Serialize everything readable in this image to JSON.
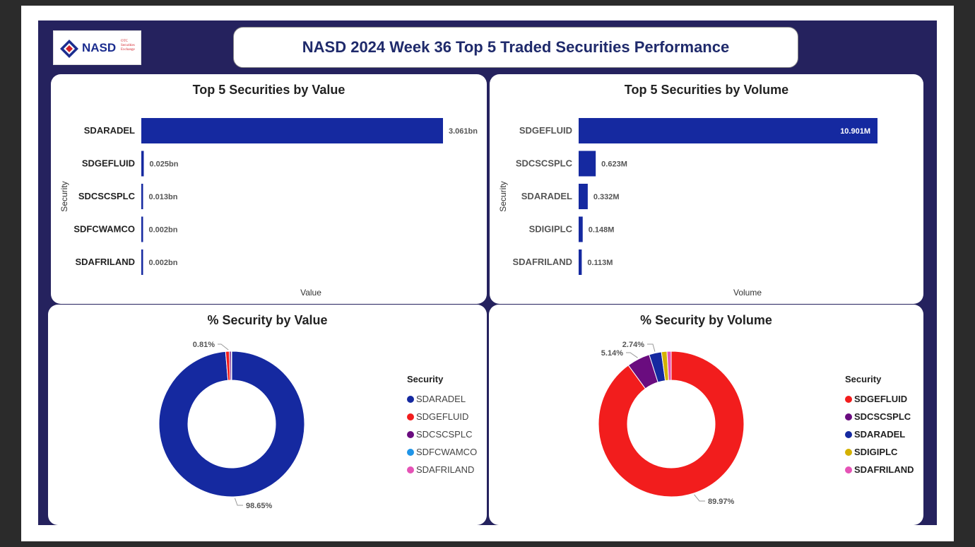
{
  "header": {
    "title": "NASD 2024 Week 36 Top 5 Traded Securities Performance",
    "logo_text": "NASD",
    "logo_tagline": "OTC Securities Exchange"
  },
  "colors": {
    "bar": "#1529a0",
    "SDARADEL": "#1529a0",
    "SDGEFLUID": "#f21d1d",
    "SDCSCSPLC": "#6a0c7f",
    "SDFCWAMCO": "#2095e8",
    "SDAFRILAND": "#e553b6",
    "SDIGIPLC": "#d4b100"
  },
  "chart_data": [
    {
      "type": "bar",
      "orientation": "horizontal",
      "title": "Top 5 Securities by Value",
      "xlabel": "Value",
      "ylabel": "Security",
      "categories": [
        "SDARADEL",
        "SDGEFLUID",
        "SDCSCSPLC",
        "SDFCWAMCO",
        "SDAFRILAND"
      ],
      "values": [
        3.061,
        0.025,
        0.013,
        0.002,
        0.002
      ],
      "value_labels": [
        "3.061bn",
        "0.025bn",
        "0.013bn",
        "0.002bn",
        "0.002bn"
      ],
      "unit": "bn",
      "xlim": [
        0,
        3.061
      ],
      "grid": false
    },
    {
      "type": "bar",
      "orientation": "horizontal",
      "title": "Top 5 Securities by Volume",
      "xlabel": "Volume",
      "ylabel": "Security",
      "categories": [
        "SDGEFLUID",
        "SDCSCSPLC",
        "SDARADEL",
        "SDIGIPLC",
        "SDAFRILAND"
      ],
      "values": [
        10.901,
        0.623,
        0.332,
        0.148,
        0.113
      ],
      "value_labels": [
        "10.901M",
        "0.623M",
        "0.332M",
        "0.148M",
        "0.113M"
      ],
      "unit": "M",
      "xlim": [
        0,
        10.901
      ],
      "grid": false
    },
    {
      "type": "pie",
      "donut": true,
      "title": "% Security by Value",
      "legend_title": "Security",
      "legend_position": "right",
      "categories": [
        "SDARADEL",
        "SDGEFLUID",
        "SDCSCSPLC",
        "SDFCWAMCO",
        "SDAFRILAND"
      ],
      "values": [
        98.65,
        0.81,
        0.42,
        0.06,
        0.06
      ],
      "labels": [
        {
          "category": "SDGEFLUID",
          "text": "0.81%"
        },
        {
          "category": "SDARADEL",
          "text": "98.65%"
        }
      ]
    },
    {
      "type": "pie",
      "donut": true,
      "title": "% Security by Volume",
      "legend_title": "Security",
      "legend_position": "right",
      "categories": [
        "SDGEFLUID",
        "SDCSCSPLC",
        "SDARADEL",
        "SDIGIPLC",
        "SDAFRILAND"
      ],
      "values": [
        89.97,
        5.14,
        2.74,
        1.22,
        0.93
      ],
      "labels": [
        {
          "category": "SDCSCSPLC",
          "text": "5.14%"
        },
        {
          "category": "SDARADEL",
          "text": "2.74%"
        },
        {
          "category": "SDGEFLUID",
          "text": "89.97%"
        }
      ]
    }
  ]
}
